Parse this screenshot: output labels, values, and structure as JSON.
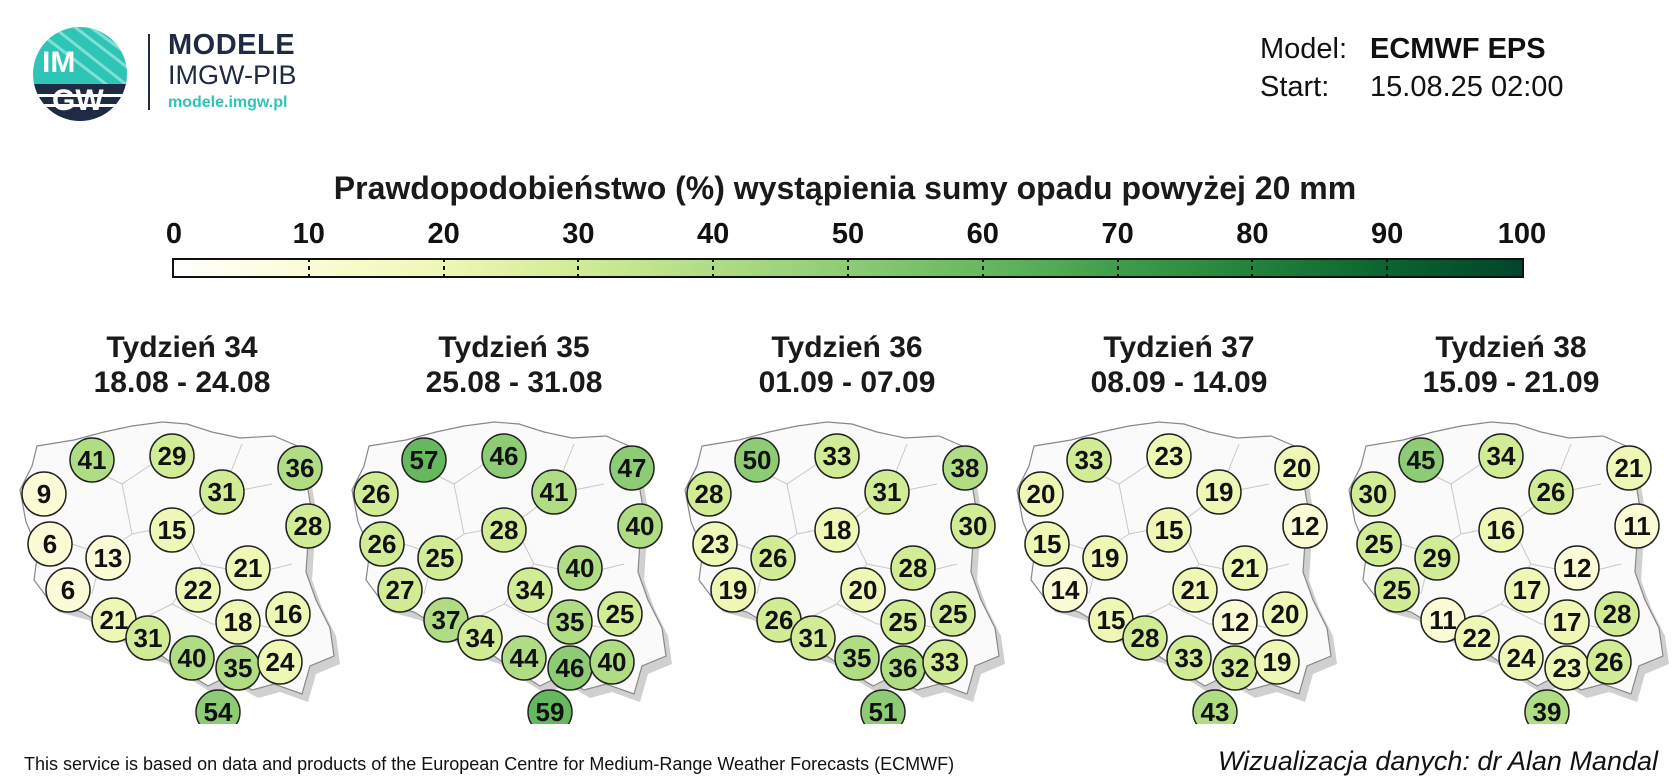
{
  "logo": {
    "icon": "imgw-logo-icon",
    "text_top": "IM",
    "text_bottom": "GW"
  },
  "brand": {
    "title": "MODELE",
    "subtitle": "IMGW-PIB",
    "url": "modele.imgw.pl"
  },
  "model_info": {
    "model_label": "Model:",
    "model_value": "ECMWF EPS",
    "start_label": "Start:",
    "start_value": "15.08.25 02:00"
  },
  "title": "Prawdopodobieństwo (%) wystąpienia sumy opadu powyżej 20 mm",
  "colorbar": {
    "ticks": [
      "0",
      "10",
      "20",
      "30",
      "40",
      "50",
      "60",
      "70",
      "80",
      "90",
      "100"
    ],
    "colors": [
      "#ffffff",
      "#fbfcd6",
      "#eef7b4",
      "#d2eb95",
      "#b0dc84",
      "#8dcc74",
      "#66b85f",
      "#3f9d4a",
      "#23823b",
      "#0b6430",
      "#00452b"
    ]
  },
  "weeks": [
    {
      "title": "Tydzień 34",
      "dates": "18.08 - 24.08",
      "values": [
        9,
        41,
        29,
        31,
        36,
        28,
        6,
        15,
        13,
        6,
        21,
        22,
        21,
        18,
        16,
        31,
        40,
        35,
        24,
        54
      ]
    },
    {
      "title": "Tydzień 35",
      "dates": "25.08 - 31.08",
      "values": [
        26,
        57,
        46,
        41,
        47,
        40,
        26,
        28,
        25,
        27,
        37,
        34,
        40,
        35,
        25,
        34,
        44,
        46,
        40,
        59
      ]
    },
    {
      "title": "Tydzień 36",
      "dates": "01.09 - 07.09",
      "values": [
        28,
        50,
        33,
        31,
        38,
        30,
        23,
        18,
        26,
        19,
        26,
        20,
        28,
        25,
        25,
        31,
        35,
        36,
        33,
        51
      ]
    },
    {
      "title": "Tydzień 37",
      "dates": "08.09 - 14.09",
      "values": [
        20,
        33,
        23,
        19,
        20,
        12,
        15,
        15,
        19,
        14,
        15,
        21,
        21,
        12,
        20,
        28,
        33,
        32,
        19,
        43
      ]
    },
    {
      "title": "Tydzień 38",
      "dates": "15.09 - 21.09",
      "values": [
        30,
        45,
        34,
        26,
        21,
        11,
        25,
        16,
        29,
        25,
        11,
        17,
        12,
        17,
        28,
        22,
        24,
        23,
        26,
        39
      ]
    }
  ],
  "footer": {
    "left": "This service is based on data and products of the European Centre for Medium-Range Weather Forecasts (ECMWF)",
    "right": "Wizualizacja danych: dr Alan Mandal"
  }
}
